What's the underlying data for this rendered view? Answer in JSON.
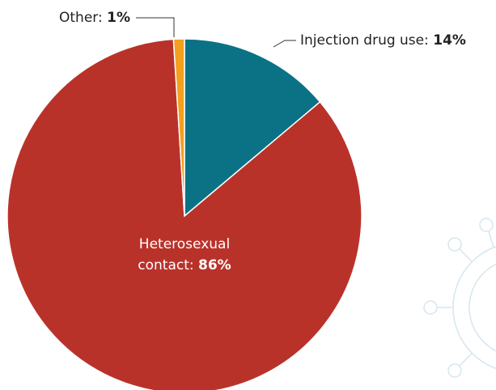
{
  "chart_data": {
    "type": "pie",
    "categories": [
      "Injection drug use:",
      "Heterosexual contact:",
      "Other:"
    ],
    "values": [
      14,
      86,
      1
    ],
    "value_labels": [
      "14%",
      "86%",
      "1%"
    ],
    "colors": [
      "#0b7285",
      "#b9322a",
      "#f2a01e"
    ]
  }
}
